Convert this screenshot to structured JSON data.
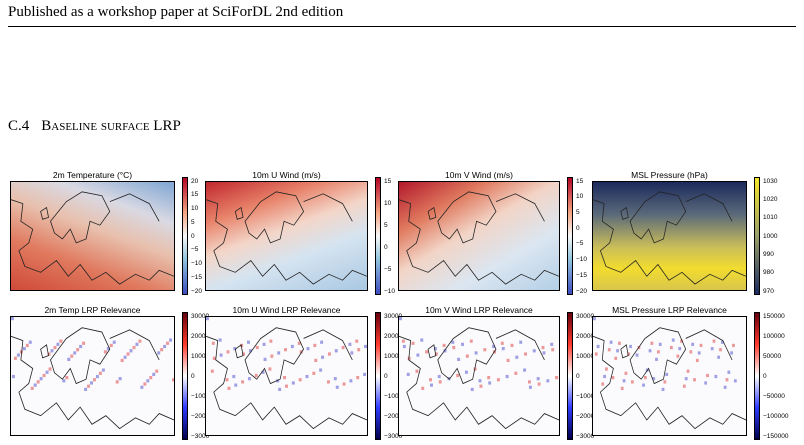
{
  "header": {
    "text": "Published as a workshop paper at SciForDL 2nd edition"
  },
  "section": {
    "number": "C.4",
    "title": "Baseline surface LRP"
  },
  "figure": {
    "panels": [
      {
        "title": "2m Temperature (°C)",
        "colorbar_labels": [
          "20",
          "15",
          "10",
          "5",
          "0",
          "−5",
          "−10",
          "−15",
          "−20"
        ]
      },
      {
        "title": "10m U Wind (m/s)",
        "colorbar_labels": [
          "15",
          "10",
          "5",
          "0",
          "−5",
          "−10"
        ]
      },
      {
        "title": "10m V Wind (m/s)",
        "colorbar_labels": [
          "15",
          "10",
          "5",
          "0",
          "−5",
          "−10",
          "−15",
          "−20"
        ]
      },
      {
        "title": "MSL Pressure (hPa)",
        "colorbar_labels": [
          "1030",
          "1020",
          "1010",
          "1000",
          "990",
          "980",
          "970"
        ]
      },
      {
        "title": "2m Temp LRP Relevance",
        "colorbar_labels": [
          "30000",
          "20000",
          "10000",
          "0",
          "−1000",
          "−2000",
          "−3000"
        ]
      },
      {
        "title": "10m U Wind LRP Relevance",
        "colorbar_labels": [
          "30000",
          "20000",
          "10000",
          "0",
          "−1000",
          "−2000",
          "−3000"
        ]
      },
      {
        "title": "10m V Wind LRP Relevance",
        "colorbar_labels": [
          "30000",
          "20000",
          "10000",
          "0",
          "−1000",
          "−2000",
          "−3000"
        ]
      },
      {
        "title": "MSL Pressure LRP Relevance",
        "colorbar_labels": [
          "150000",
          "100000",
          "50000",
          "0",
          "−50000",
          "−100000",
          "−150000"
        ]
      }
    ]
  }
}
